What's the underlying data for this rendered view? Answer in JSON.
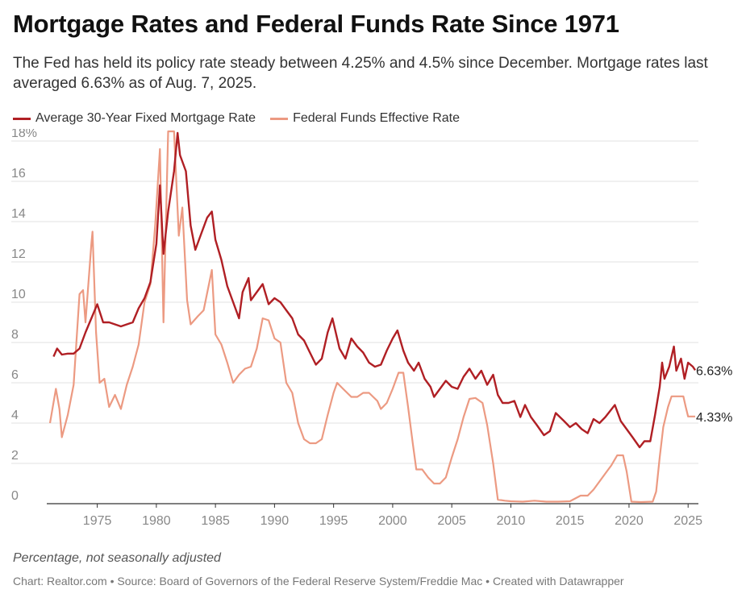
{
  "title": "Mortgage Rates and Federal Funds Rate Since 1971",
  "subtitle": "The Fed has held its policy rate steady between 4.25% and 4.5% since December. Mortgage rates last averaged 6.63% as of Aug. 7, 2025.",
  "note": "Percentage, not seasonally adjusted",
  "footer": "Chart: Realtor.com • Source: Board of Governors of the Federal Reserve System/Freddie Mac • Created with Datawrapper",
  "colors": {
    "mortgage": "#b01f24",
    "fedfunds": "#ec9a82",
    "grid": "#e2e2e2",
    "axis": "#333333"
  },
  "chart_data": {
    "type": "line",
    "xlim": [
      1971,
      2025.6
    ],
    "ylim": [
      0,
      18
    ],
    "x_ticks": [
      1975,
      1980,
      1985,
      1990,
      1995,
      2000,
      2005,
      2010,
      2015,
      2020,
      2025
    ],
    "x_tick_labels": [
      "1975",
      "1980",
      "1985",
      "1990",
      "1995",
      "2000",
      "2005",
      "2010",
      "2015",
      "2020",
      "2025"
    ],
    "y_ticks": [
      0,
      2,
      4,
      6,
      8,
      10,
      12,
      14,
      16,
      18
    ],
    "y_tick_labels": [
      "0",
      "2",
      "4",
      "6",
      "8",
      "10",
      "12",
      "14",
      "16",
      "18%"
    ],
    "grid": true,
    "legend": "top-left",
    "series": [
      {
        "name": "Average 30-Year Fixed Mortgage Rate",
        "end_label": "6.63%",
        "points": [
          [
            1971.3,
            7.3
          ],
          [
            1971.6,
            7.7
          ],
          [
            1972.0,
            7.4
          ],
          [
            1972.5,
            7.45
          ],
          [
            1973.0,
            7.45
          ],
          [
            1973.5,
            7.7
          ],
          [
            1974.0,
            8.5
          ],
          [
            1974.5,
            9.2
          ],
          [
            1975.0,
            9.9
          ],
          [
            1975.5,
            9.0
          ],
          [
            1976.0,
            9.0
          ],
          [
            1976.5,
            8.9
          ],
          [
            1977.0,
            8.8
          ],
          [
            1977.5,
            8.9
          ],
          [
            1978.0,
            9.0
          ],
          [
            1978.5,
            9.7
          ],
          [
            1979.0,
            10.2
          ],
          [
            1979.5,
            11.0
          ],
          [
            1980.0,
            12.9
          ],
          [
            1980.3,
            15.8
          ],
          [
            1980.6,
            12.4
          ],
          [
            1981.0,
            14.5
          ],
          [
            1981.5,
            16.5
          ],
          [
            1981.8,
            18.4
          ],
          [
            1982.0,
            17.3
          ],
          [
            1982.5,
            16.5
          ],
          [
            1982.9,
            13.8
          ],
          [
            1983.3,
            12.6
          ],
          [
            1983.8,
            13.4
          ],
          [
            1984.3,
            14.2
          ],
          [
            1984.7,
            14.5
          ],
          [
            1985.0,
            13.1
          ],
          [
            1985.5,
            12.1
          ],
          [
            1986.0,
            10.8
          ],
          [
            1986.5,
            10.0
          ],
          [
            1987.0,
            9.2
          ],
          [
            1987.3,
            10.5
          ],
          [
            1987.8,
            11.2
          ],
          [
            1988.0,
            10.1
          ],
          [
            1988.5,
            10.5
          ],
          [
            1989.0,
            10.9
          ],
          [
            1989.5,
            9.9
          ],
          [
            1990.0,
            10.2
          ],
          [
            1990.5,
            10.0
          ],
          [
            1991.0,
            9.6
          ],
          [
            1991.5,
            9.2
          ],
          [
            1992.0,
            8.4
          ],
          [
            1992.5,
            8.1
          ],
          [
            1993.0,
            7.5
          ],
          [
            1993.5,
            6.9
          ],
          [
            1994.0,
            7.2
          ],
          [
            1994.5,
            8.5
          ],
          [
            1994.9,
            9.2
          ],
          [
            1995.5,
            7.7
          ],
          [
            1996.0,
            7.2
          ],
          [
            1996.5,
            8.2
          ],
          [
            1997.0,
            7.8
          ],
          [
            1997.5,
            7.5
          ],
          [
            1998.0,
            7.0
          ],
          [
            1998.5,
            6.8
          ],
          [
            1999.0,
            6.9
          ],
          [
            1999.5,
            7.6
          ],
          [
            2000.0,
            8.2
          ],
          [
            2000.4,
            8.6
          ],
          [
            2000.9,
            7.6
          ],
          [
            2001.3,
            7.0
          ],
          [
            2001.8,
            6.6
          ],
          [
            2002.2,
            7.0
          ],
          [
            2002.7,
            6.2
          ],
          [
            2003.2,
            5.8
          ],
          [
            2003.5,
            5.3
          ],
          [
            2004.0,
            5.7
          ],
          [
            2004.5,
            6.1
          ],
          [
            2005.0,
            5.8
          ],
          [
            2005.5,
            5.7
          ],
          [
            2006.0,
            6.3
          ],
          [
            2006.5,
            6.7
          ],
          [
            2007.0,
            6.2
          ],
          [
            2007.5,
            6.6
          ],
          [
            2008.0,
            5.9
          ],
          [
            2008.5,
            6.4
          ],
          [
            2008.9,
            5.4
          ],
          [
            2009.3,
            5.0
          ],
          [
            2009.8,
            5.0
          ],
          [
            2010.3,
            5.1
          ],
          [
            2010.8,
            4.3
          ],
          [
            2011.2,
            4.9
          ],
          [
            2011.7,
            4.3
          ],
          [
            2012.2,
            3.9
          ],
          [
            2012.8,
            3.4
          ],
          [
            2013.3,
            3.6
          ],
          [
            2013.8,
            4.5
          ],
          [
            2014.5,
            4.1
          ],
          [
            2015.0,
            3.8
          ],
          [
            2015.5,
            4.0
          ],
          [
            2016.0,
            3.7
          ],
          [
            2016.5,
            3.5
          ],
          [
            2017.0,
            4.2
          ],
          [
            2017.5,
            4.0
          ],
          [
            2018.0,
            4.3
          ],
          [
            2018.8,
            4.9
          ],
          [
            2019.3,
            4.1
          ],
          [
            2019.8,
            3.7
          ],
          [
            2020.3,
            3.3
          ],
          [
            2020.9,
            2.8
          ],
          [
            2021.3,
            3.1
          ],
          [
            2021.8,
            3.1
          ],
          [
            2022.2,
            4.4
          ],
          [
            2022.6,
            5.8
          ],
          [
            2022.8,
            7.0
          ],
          [
            2023.0,
            6.2
          ],
          [
            2023.4,
            6.8
          ],
          [
            2023.8,
            7.8
          ],
          [
            2024.0,
            6.6
          ],
          [
            2024.4,
            7.2
          ],
          [
            2024.7,
            6.2
          ],
          [
            2025.0,
            7.0
          ],
          [
            2025.4,
            6.8
          ],
          [
            2025.6,
            6.63
          ]
        ]
      },
      {
        "name": "Federal Funds Effective Rate",
        "end_label": "4.33%",
        "points": [
          [
            1971.0,
            4.0
          ],
          [
            1971.5,
            5.7
          ],
          [
            1971.8,
            4.7
          ],
          [
            1972.0,
            3.3
          ],
          [
            1972.5,
            4.4
          ],
          [
            1973.0,
            5.9
          ],
          [
            1973.5,
            10.4
          ],
          [
            1973.8,
            10.6
          ],
          [
            1974.0,
            9.0
          ],
          [
            1974.5,
            12.9
          ],
          [
            1974.6,
            13.5
          ],
          [
            1974.9,
            8.5
          ],
          [
            1975.2,
            6.0
          ],
          [
            1975.6,
            6.2
          ],
          [
            1976.0,
            4.8
          ],
          [
            1976.5,
            5.4
          ],
          [
            1977.0,
            4.7
          ],
          [
            1977.5,
            5.9
          ],
          [
            1978.0,
            6.8
          ],
          [
            1978.5,
            7.9
          ],
          [
            1979.0,
            10.0
          ],
          [
            1979.5,
            10.9
          ],
          [
            1979.9,
            13.8
          ],
          [
            1980.3,
            17.6
          ],
          [
            1980.6,
            9.0
          ],
          [
            1981.0,
            19.0
          ],
          [
            1981.5,
            19.1
          ],
          [
            1981.9,
            13.3
          ],
          [
            1982.2,
            14.7
          ],
          [
            1982.6,
            10.1
          ],
          [
            1982.9,
            8.9
          ],
          [
            1983.5,
            9.3
          ],
          [
            1984.0,
            9.6
          ],
          [
            1984.7,
            11.6
          ],
          [
            1985.0,
            8.4
          ],
          [
            1985.5,
            7.9
          ],
          [
            1986.0,
            7.0
          ],
          [
            1986.5,
            6.0
          ],
          [
            1987.0,
            6.4
          ],
          [
            1987.5,
            6.7
          ],
          [
            1988.0,
            6.8
          ],
          [
            1988.5,
            7.7
          ],
          [
            1989.0,
            9.2
          ],
          [
            1989.5,
            9.1
          ],
          [
            1990.0,
            8.2
          ],
          [
            1990.5,
            8.0
          ],
          [
            1991.0,
            6.0
          ],
          [
            1991.5,
            5.5
          ],
          [
            1992.0,
            4.0
          ],
          [
            1992.5,
            3.2
          ],
          [
            1993.0,
            3.0
          ],
          [
            1993.5,
            3.0
          ],
          [
            1994.0,
            3.2
          ],
          [
            1994.5,
            4.4
          ],
          [
            1995.0,
            5.5
          ],
          [
            1995.3,
            6.0
          ],
          [
            1995.8,
            5.7
          ],
          [
            1996.5,
            5.3
          ],
          [
            1997.0,
            5.3
          ],
          [
            1997.5,
            5.5
          ],
          [
            1998.0,
            5.5
          ],
          [
            1998.7,
            5.1
          ],
          [
            1999.0,
            4.7
          ],
          [
            1999.5,
            5.0
          ],
          [
            2000.0,
            5.7
          ],
          [
            2000.5,
            6.5
          ],
          [
            2000.9,
            6.5
          ],
          [
            2001.3,
            4.8
          ],
          [
            2001.7,
            3.0
          ],
          [
            2002.0,
            1.7
          ],
          [
            2002.5,
            1.7
          ],
          [
            2003.0,
            1.3
          ],
          [
            2003.5,
            1.0
          ],
          [
            2004.0,
            1.0
          ],
          [
            2004.5,
            1.3
          ],
          [
            2005.0,
            2.3
          ],
          [
            2005.5,
            3.2
          ],
          [
            2006.0,
            4.3
          ],
          [
            2006.5,
            5.2
          ],
          [
            2007.0,
            5.25
          ],
          [
            2007.6,
            5.0
          ],
          [
            2008.0,
            3.9
          ],
          [
            2008.5,
            2.0
          ],
          [
            2008.9,
            0.2
          ],
          [
            2009.5,
            0.15
          ],
          [
            2010.0,
            0.12
          ],
          [
            2011.0,
            0.1
          ],
          [
            2012.0,
            0.15
          ],
          [
            2013.0,
            0.1
          ],
          [
            2014.0,
            0.1
          ],
          [
            2015.0,
            0.12
          ],
          [
            2015.9,
            0.4
          ],
          [
            2016.5,
            0.4
          ],
          [
            2017.0,
            0.7
          ],
          [
            2017.5,
            1.1
          ],
          [
            2018.0,
            1.5
          ],
          [
            2018.5,
            1.9
          ],
          [
            2019.0,
            2.4
          ],
          [
            2019.5,
            2.4
          ],
          [
            2019.8,
            1.6
          ],
          [
            2020.2,
            0.1
          ],
          [
            2021.0,
            0.08
          ],
          [
            2022.0,
            0.1
          ],
          [
            2022.3,
            0.6
          ],
          [
            2022.6,
            2.3
          ],
          [
            2022.9,
            3.8
          ],
          [
            2023.3,
            4.8
          ],
          [
            2023.6,
            5.33
          ],
          [
            2024.0,
            5.33
          ],
          [
            2024.6,
            5.33
          ],
          [
            2024.8,
            4.8
          ],
          [
            2025.0,
            4.33
          ],
          [
            2025.6,
            4.33
          ]
        ]
      }
    ]
  }
}
